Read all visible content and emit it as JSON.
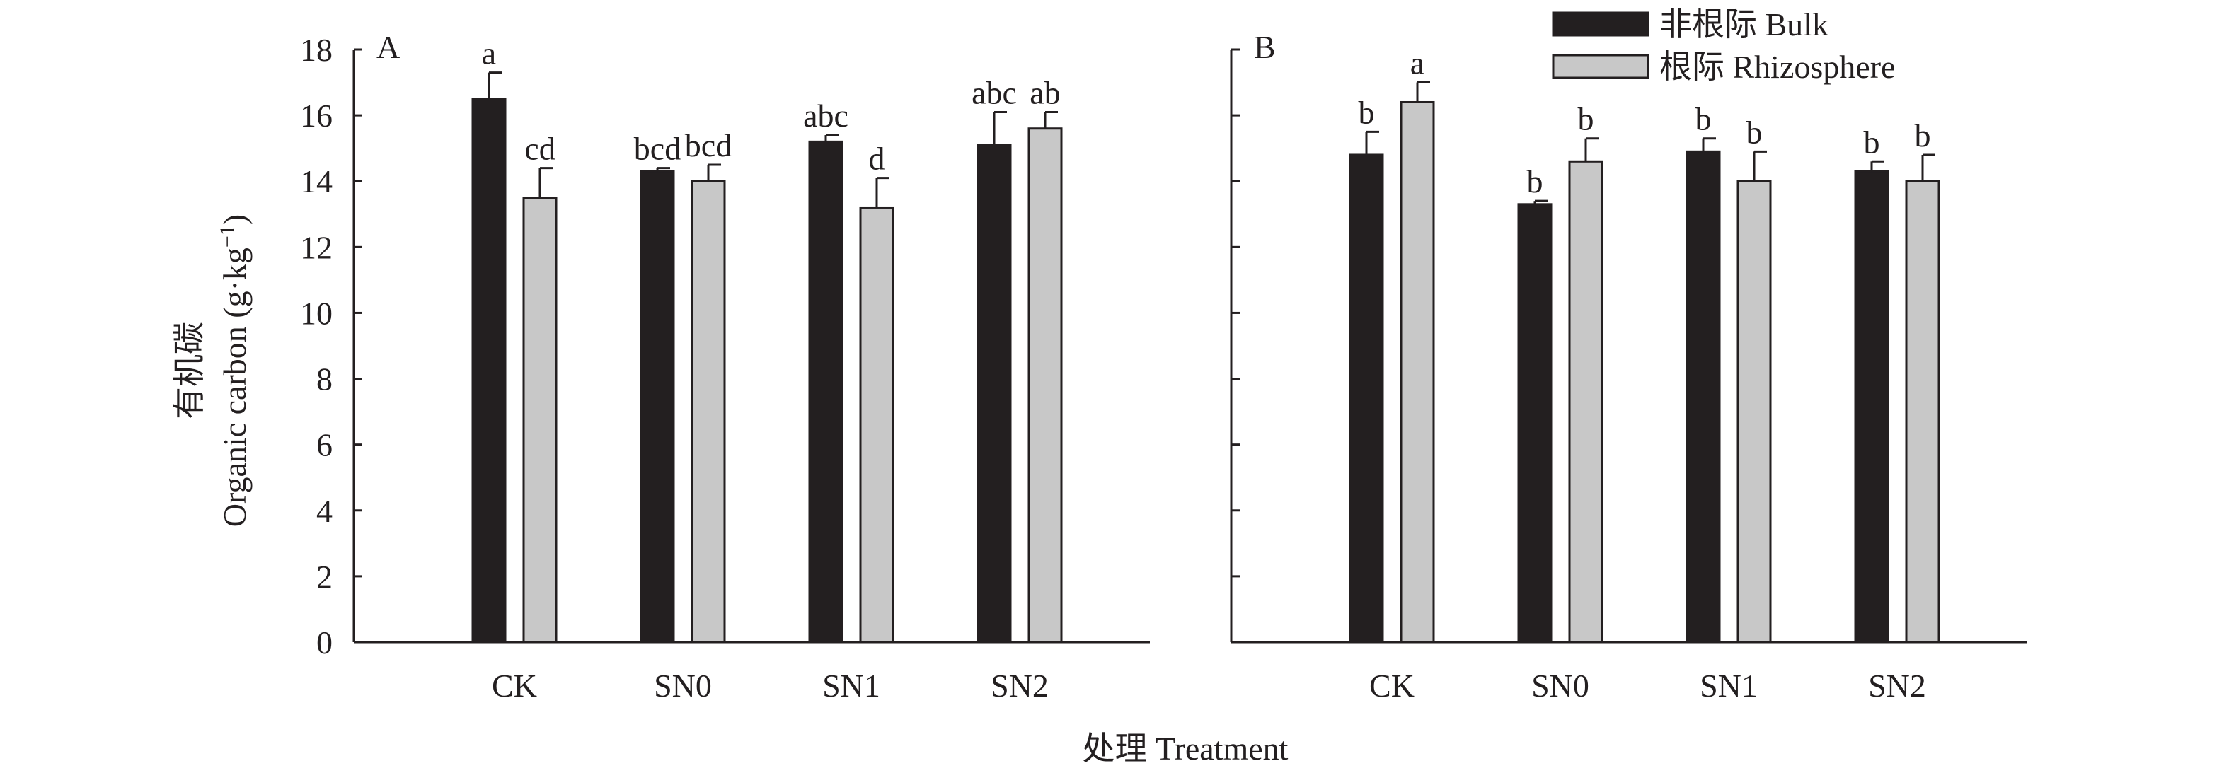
{
  "chart_data": [
    {
      "type": "bar",
      "panel_label": "A",
      "categories": [
        "CK",
        "SN0",
        "SN1",
        "SN2"
      ],
      "ylim": [
        0,
        18
      ],
      "yticks": [
        "0",
        "2",
        "4",
        "6",
        "8",
        "10",
        "12",
        "14",
        "16",
        "18"
      ],
      "series": [
        {
          "name": "非根际 Bulk",
          "color": "#231f20",
          "values": [
            16.5,
            14.3,
            15.2,
            15.1
          ],
          "errors": [
            0.8,
            0.1,
            0.2,
            1.0
          ],
          "letters": [
            "a",
            "bcd",
            "abc",
            "abc"
          ]
        },
        {
          "name": "根际 Rhizosphere",
          "color": "#c8c8c8",
          "values": [
            13.5,
            14.0,
            13.2,
            15.6
          ],
          "errors": [
            0.9,
            0.5,
            0.9,
            0.5
          ],
          "letters": [
            "cd",
            "bcd",
            "d",
            "ab"
          ]
        }
      ]
    },
    {
      "type": "bar",
      "panel_label": "B",
      "categories": [
        "CK",
        "SN0",
        "SN1",
        "SN2"
      ],
      "ylim": [
        0,
        18
      ],
      "series": [
        {
          "name": "非根际 Bulk",
          "color": "#231f20",
          "values": [
            14.8,
            13.3,
            14.9,
            14.3
          ],
          "errors": [
            0.7,
            0.1,
            0.4,
            0.3
          ],
          "letters": [
            "b",
            "b",
            "b",
            "b"
          ]
        },
        {
          "name": "根际 Rhizosphere",
          "color": "#c8c8c8",
          "values": [
            16.4,
            14.6,
            14.0,
            14.0
          ],
          "errors": [
            0.6,
            0.7,
            0.9,
            0.8
          ],
          "letters": [
            "a",
            "b",
            "b",
            "b"
          ]
        }
      ]
    }
  ],
  "axes": {
    "ylabel_cn": "有机碳",
    "ylabel_en": "Organic carbon (g·kg",
    "ylabel_exp": "−1",
    "ylabel_close": ")",
    "xlabel": "处理 Treatment"
  },
  "legend": {
    "placement": "top-right",
    "entries": [
      "非根际 Bulk",
      "根际 Rhizosphere"
    ]
  }
}
